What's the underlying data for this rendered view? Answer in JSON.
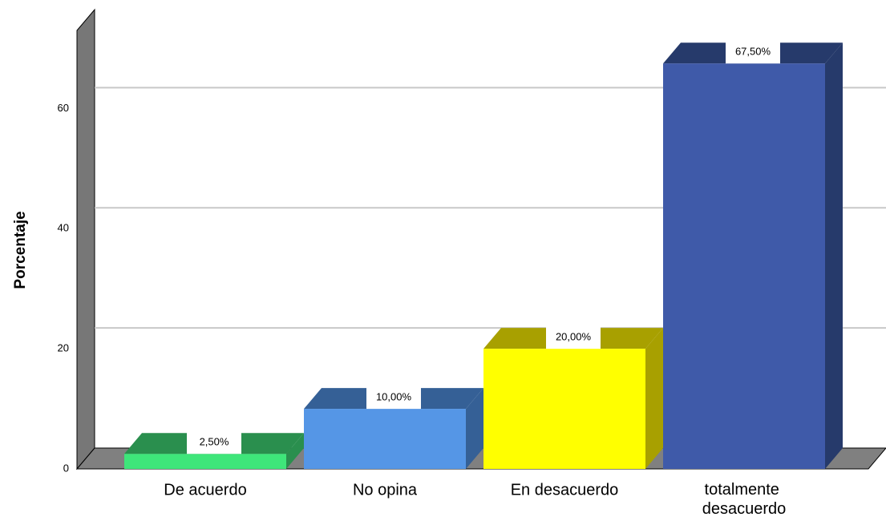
{
  "chart_data": {
    "type": "bar3d",
    "y_label": "Porcentaje",
    "categories": [
      "De acuerdo",
      "No opina",
      "En desacuerdo",
      "totalmente desacuerdo"
    ],
    "values": [
      2.5,
      10,
      20,
      67.5
    ],
    "value_labels": [
      "2,50%",
      "10,00%",
      "20,00%",
      "67,50%"
    ],
    "colors": [
      "#3ee67a",
      "#5596e6",
      "#ffff00",
      "#3f5aa9"
    ],
    "top_colors": [
      "#2a8f4e",
      "#356096",
      "#a8a000",
      "#263a6b"
    ],
    "ylim": [
      0,
      73
    ],
    "yticks": [
      0,
      20,
      40,
      60
    ],
    "grid": true
  }
}
